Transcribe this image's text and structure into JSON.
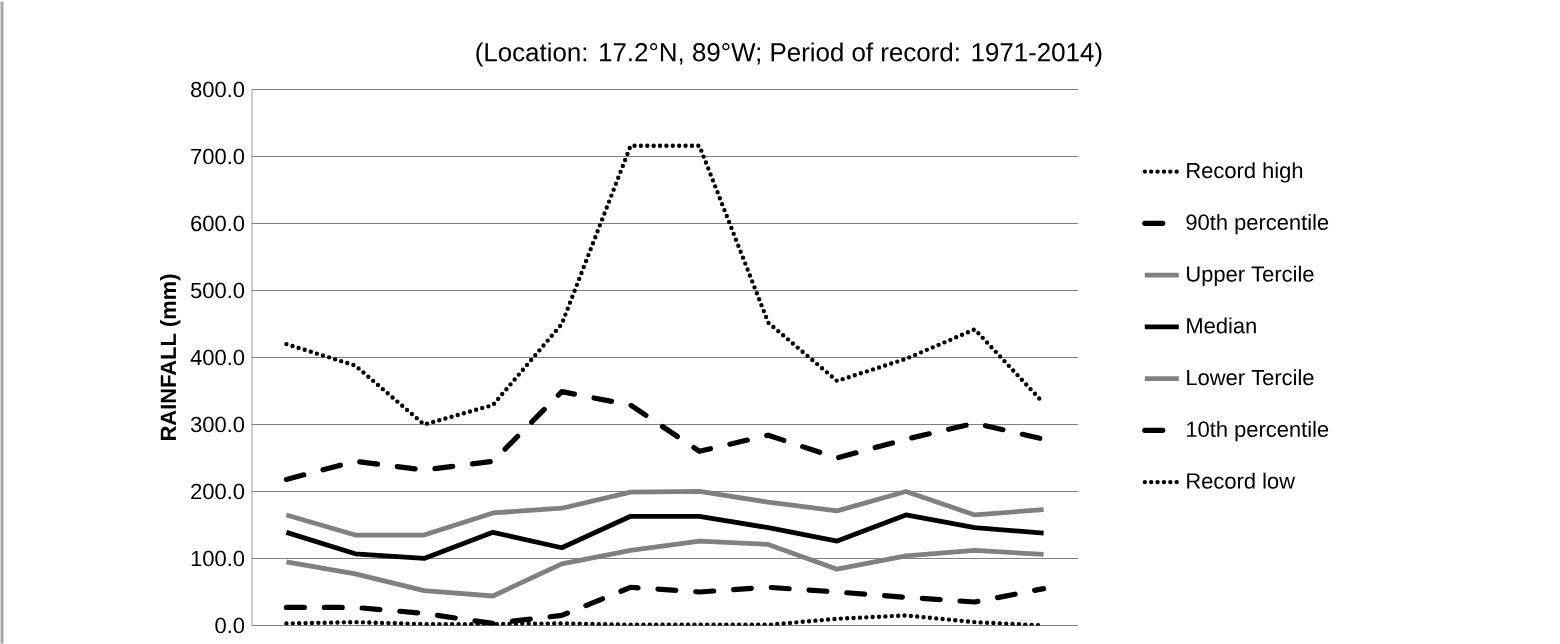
{
  "chart_data": {
    "type": "line",
    "title": "(Location: 17.2°N, 89°W; Period of record: 1971-2014)",
    "ylabel": "RAINFALL (mm)",
    "categories": [
      null,
      null,
      null,
      null,
      null,
      null,
      null,
      null,
      null,
      null,
      null,
      null
    ],
    "ylim": [
      0,
      800
    ],
    "yticks": [
      {
        "value": 0,
        "label": "0.0"
      },
      {
        "value": 100,
        "label": "100.0"
      },
      {
        "value": 200,
        "label": "200.0"
      },
      {
        "value": 300,
        "label": "300.0"
      },
      {
        "value": 400,
        "label": "400.0"
      },
      {
        "value": 500,
        "label": "500.0"
      },
      {
        "value": 600,
        "label": "600.0"
      },
      {
        "value": 700,
        "label": "700.0"
      },
      {
        "value": 800,
        "label": "800.0"
      }
    ],
    "grid": "y",
    "legend": "right",
    "tick_labels": "y",
    "marker": "none",
    "series": [
      {
        "name": "Record high",
        "color": "#000000",
        "line_style": "dotted",
        "values": [
          420,
          388,
          300,
          329,
          450,
          716,
          716,
          452,
          365,
          398,
          442,
          332
        ]
      },
      {
        "name": "90th percentile",
        "color": "#000000",
        "line_style": "dashdot",
        "values": [
          218,
          245,
          232,
          245,
          349,
          329,
          260,
          284,
          250,
          278,
          302,
          278
        ]
      },
      {
        "name": "Upper Tercile",
        "color": "#808080",
        "line_style": "solid",
        "values": [
          165,
          135,
          135,
          168,
          175,
          199,
          200,
          184,
          171,
          200,
          165,
          173
        ]
      },
      {
        "name": "Median",
        "color": "#000000",
        "line_style": "solid",
        "values": [
          139,
          107,
          100,
          139,
          116,
          163,
          163,
          146,
          126,
          165,
          146,
          138
        ]
      },
      {
        "name": "Lower Tercile",
        "color": "#808080",
        "line_style": "solid",
        "values": [
          95,
          77,
          52,
          44,
          92,
          112,
          126,
          121,
          84,
          104,
          112,
          106
        ]
      },
      {
        "name": "10th percentile",
        "color": "#000000",
        "line_style": "dashdot",
        "values": [
          27,
          27,
          18,
          3,
          15,
          57,
          50,
          57,
          50,
          42,
          35,
          55
        ]
      },
      {
        "name": "Record low",
        "color": "#000000",
        "line_style": "dotted",
        "values": [
          3,
          5,
          2,
          2,
          3,
          1,
          1,
          1,
          10,
          15,
          5,
          0
        ]
      }
    ]
  }
}
